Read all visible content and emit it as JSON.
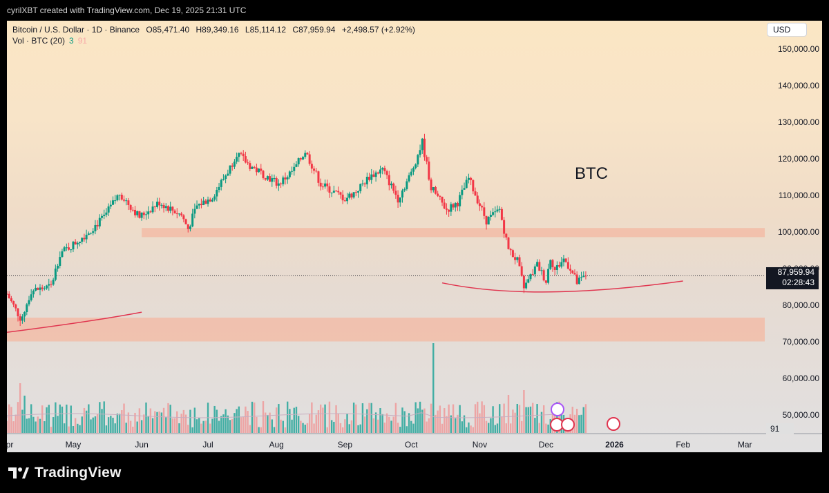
{
  "topbar": {
    "text": "cyrilXBT created with TradingView.com, Dec 19, 2025 21:31 UTC"
  },
  "header": {
    "symbol": "Bitcoin / U.S. Dollar · 1D · Binance",
    "open": "O85,471.40",
    "high": "H89,349.16",
    "low": "L85,114.12",
    "close": "C87,959.94",
    "change": "+2,498.57 (+2.92%)"
  },
  "volume_legend": {
    "label": "Vol · BTC (20)",
    "value_a": "3",
    "value_b": "91"
  },
  "currency_button": "USD",
  "annotation": "BTC",
  "price_label": {
    "price": "87,959.94",
    "countdown": "02:28:43"
  },
  "volume_label": "91",
  "branding": {
    "logo_text": "TradingView"
  },
  "colors": {
    "up": "#089981",
    "down": "#f23645",
    "zone": "#f3b8a1",
    "curve": "#e0354f"
  },
  "chart_data": {
    "type": "candlestick",
    "title": "Bitcoin / U.S. Dollar · 1D · Binance",
    "xlabel": "",
    "ylabel": "",
    "ylim": [
      45000,
      155000
    ],
    "y_ticks": [
      "150,000.00",
      "140,000.00",
      "130,000.00",
      "120,000.00",
      "110,000.00",
      "100,000.00",
      "90,000.00",
      "80,000.00",
      "70,000.00",
      "60,000.00",
      "50,000.00"
    ],
    "y_tick_values": [
      150000,
      140000,
      130000,
      120000,
      110000,
      100000,
      90000,
      80000,
      70000,
      60000,
      50000
    ],
    "x_ticks": [
      "Apr",
      "May",
      "Jun",
      "Jul",
      "Aug",
      "Sep",
      "Oct",
      "Nov",
      "Dec",
      "2026",
      "Feb",
      "Mar"
    ],
    "x_tick_dates": [
      "2025-04-01",
      "2025-05-01",
      "2025-06-01",
      "2025-07-01",
      "2025-08-01",
      "2025-09-01",
      "2025-10-01",
      "2025-11-01",
      "2025-12-01",
      "2026-01-01",
      "2026-02-01",
      "2026-03-01"
    ],
    "x_range": [
      "2025-04-01",
      "2026-03-10"
    ],
    "last_price": 87959.94,
    "zones": [
      {
        "from": 98500,
        "to": 101000,
        "start": "2025-06-01",
        "end": "2026-03-10"
      },
      {
        "from": 70000,
        "to": 76500,
        "start": "2025-04-01",
        "end": "2026-03-10"
      }
    ],
    "curves": [
      {
        "points": [
          [
            "2025-04-01",
            72500
          ],
          [
            "2025-05-10",
            75500
          ],
          [
            "2025-06-01",
            78000
          ]
        ]
      },
      {
        "points": [
          [
            "2025-10-15",
            86000
          ],
          [
            "2025-11-25",
            80800
          ],
          [
            "2026-02-01",
            86500
          ]
        ]
      }
    ],
    "price_path": [
      [
        "2025-04-01",
        83000
      ],
      [
        "2025-04-07",
        76500
      ],
      [
        "2025-04-09",
        78500
      ],
      [
        "2025-04-12",
        83800
      ],
      [
        "2025-04-21",
        85000
      ],
      [
        "2025-04-25",
        94000
      ],
      [
        "2025-05-01",
        96500
      ],
      [
        "2025-05-08",
        100000
      ],
      [
        "2025-05-15",
        104000
      ],
      [
        "2025-05-22",
        110500
      ],
      [
        "2025-05-31",
        104000
      ],
      [
        "2025-06-09",
        108000
      ],
      [
        "2025-06-19",
        104500
      ],
      [
        "2025-06-22",
        100800
      ],
      [
        "2025-06-26",
        107000
      ],
      [
        "2025-07-03",
        109500
      ],
      [
        "2025-07-11",
        117500
      ],
      [
        "2025-07-14",
        121500
      ],
      [
        "2025-07-20",
        118000
      ],
      [
        "2025-08-02",
        113000
      ],
      [
        "2025-08-09",
        117000
      ],
      [
        "2025-08-14",
        122000
      ],
      [
        "2025-08-21",
        113000
      ],
      [
        "2025-09-01",
        109000
      ],
      [
        "2025-09-06",
        111000
      ],
      [
        "2025-09-12",
        115000
      ],
      [
        "2025-09-18",
        117000
      ],
      [
        "2025-09-25",
        109000
      ],
      [
        "2025-10-01",
        116000
      ],
      [
        "2025-10-06",
        124500
      ],
      [
        "2025-10-10",
        112000
      ],
      [
        "2025-10-17",
        106000
      ],
      [
        "2025-10-22",
        108000
      ],
      [
        "2025-10-27",
        114500
      ],
      [
        "2025-11-04",
        103000
      ],
      [
        "2025-11-10",
        106000
      ],
      [
        "2025-11-14",
        95000
      ],
      [
        "2025-11-18",
        92000
      ],
      [
        "2025-11-21",
        84500
      ],
      [
        "2025-11-27",
        91000
      ],
      [
        "2025-12-01",
        86500
      ],
      [
        "2025-12-03",
        93000
      ],
      [
        "2025-12-05",
        89500
      ],
      [
        "2025-12-09",
        92500
      ],
      [
        "2025-12-12",
        90000
      ],
      [
        "2025-12-15",
        86000
      ],
      [
        "2025-12-19",
        87959.94
      ]
    ],
    "volume_spikes": [
      [
        "2025-04-07",
        72
      ],
      [
        "2025-04-09",
        54
      ],
      [
        "2025-10-11",
        130
      ],
      [
        "2025-11-21",
        62
      ],
      [
        "2025-11-14",
        55
      ]
    ]
  }
}
